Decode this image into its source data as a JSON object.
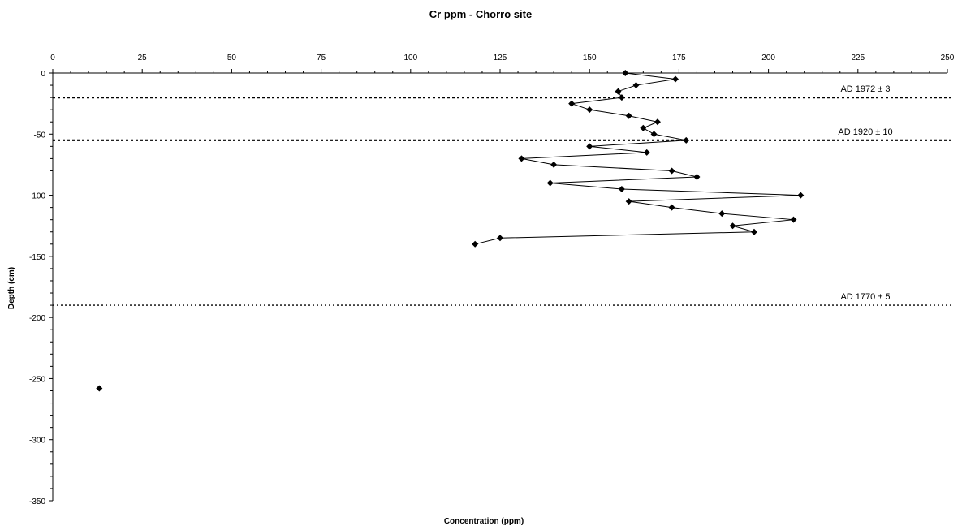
{
  "chart_data": {
    "type": "scatter",
    "title": "Cr ppm - Chorro site",
    "xlabel": "Concentration (ppm)",
    "ylabel": "Depth (cm)",
    "xlim": [
      0,
      250
    ],
    "ylim": [
      -350,
      0
    ],
    "x_ticks": [
      0,
      25,
      50,
      75,
      100,
      125,
      150,
      175,
      200,
      225,
      250
    ],
    "y_ticks": [
      0,
      -50,
      -100,
      -150,
      -200,
      -250,
      -300,
      -350
    ],
    "x_axis_position": "top",
    "grid": false,
    "legend": "none",
    "series": [
      {
        "marker": "diamond",
        "line": true,
        "color": "#000000",
        "points": [
          {
            "x": 160,
            "y": 0
          },
          {
            "x": 174,
            "y": -5
          },
          {
            "x": 163,
            "y": -10
          },
          {
            "x": 158,
            "y": -15
          },
          {
            "x": 159,
            "y": -20
          },
          {
            "x": 145,
            "y": -25
          },
          {
            "x": 150,
            "y": -30
          },
          {
            "x": 161,
            "y": -35
          },
          {
            "x": 169,
            "y": -40
          },
          {
            "x": 165,
            "y": -45
          },
          {
            "x": 168,
            "y": -50
          },
          {
            "x": 177,
            "y": -55
          },
          {
            "x": 150,
            "y": -60
          },
          {
            "x": 166,
            "y": -65
          },
          {
            "x": 131,
            "y": -70
          },
          {
            "x": 140,
            "y": -75
          },
          {
            "x": 173,
            "y": -80
          },
          {
            "x": 180,
            "y": -85
          },
          {
            "x": 139,
            "y": -90
          },
          {
            "x": 159,
            "y": -95
          },
          {
            "x": 209,
            "y": -100
          },
          {
            "x": 161,
            "y": -105
          },
          {
            "x": 173,
            "y": -110
          },
          {
            "x": 187,
            "y": -115
          },
          {
            "x": 207,
            "y": -120
          },
          {
            "x": 190,
            "y": -125
          },
          {
            "x": 196,
            "y": -130
          },
          {
            "x": 125,
            "y": -135
          },
          {
            "x": 118,
            "y": -140
          }
        ]
      },
      {
        "marker": "diamond",
        "line": false,
        "color": "#000000",
        "points": [
          {
            "x": 13,
            "y": -258
          }
        ]
      }
    ],
    "reference_lines": [
      {
        "y": -20,
        "label": "AD 1972 ± 3",
        "style": "dotted-bold"
      },
      {
        "y": -55,
        "label": "AD 1920 ± 10",
        "style": "dotted-bold"
      },
      {
        "y": -190,
        "label": "AD 1770 ± 5",
        "style": "dotted"
      }
    ]
  }
}
